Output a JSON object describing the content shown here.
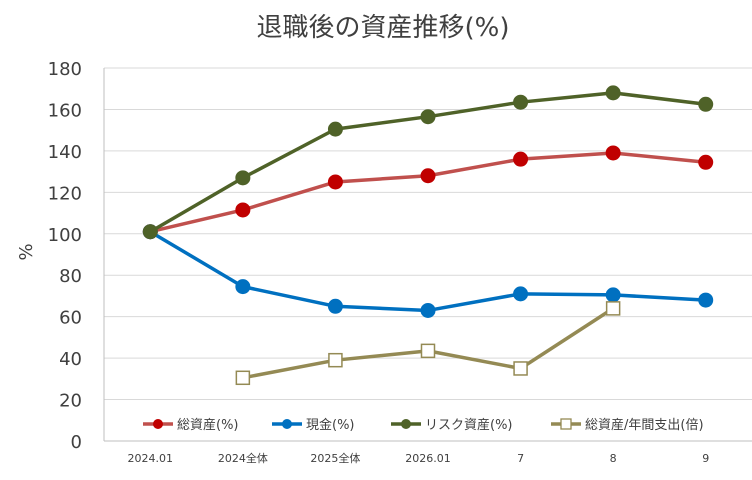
{
  "chart_data": {
    "type": "line",
    "title": "退職後の資産推移(%)",
    "xlabel": "",
    "ylabel": "%",
    "ylim": [
      0,
      180
    ],
    "yticks": [
      0,
      20,
      40,
      60,
      80,
      100,
      120,
      140,
      160,
      180
    ],
    "grid": "horizontal",
    "legend_position": "bottom-inside",
    "categories": [
      "2024.01",
      "2024全体",
      "2025全体",
      "2026.01",
      "7",
      "8",
      "9"
    ],
    "series": [
      {
        "name": "総資産(%)",
        "color": "#c0504d",
        "marker": "filled-circle",
        "marker_color": "#c00000",
        "values": [
          101,
          111.5,
          125,
          128,
          136,
          139,
          134.5
        ]
      },
      {
        "name": "現金(%)",
        "color": "#0070c0",
        "marker": "filled-circle",
        "marker_color": "#0070c0",
        "values": [
          101,
          74.5,
          65,
          63,
          71,
          70.5,
          68
        ]
      },
      {
        "name": "リスク資産(%)",
        "color": "#4f6228",
        "marker": "filled-circle",
        "marker_color": "#4f6228",
        "values": [
          101,
          127,
          150.5,
          156.5,
          163.5,
          168,
          162.5
        ]
      },
      {
        "name": "総資産/年間支出(倍)",
        "color": "#948a54",
        "marker": "hollow-square",
        "marker_color": "#948a54",
        "values": [
          null,
          30.5,
          39,
          43.5,
          35,
          64,
          null
        ]
      }
    ]
  }
}
